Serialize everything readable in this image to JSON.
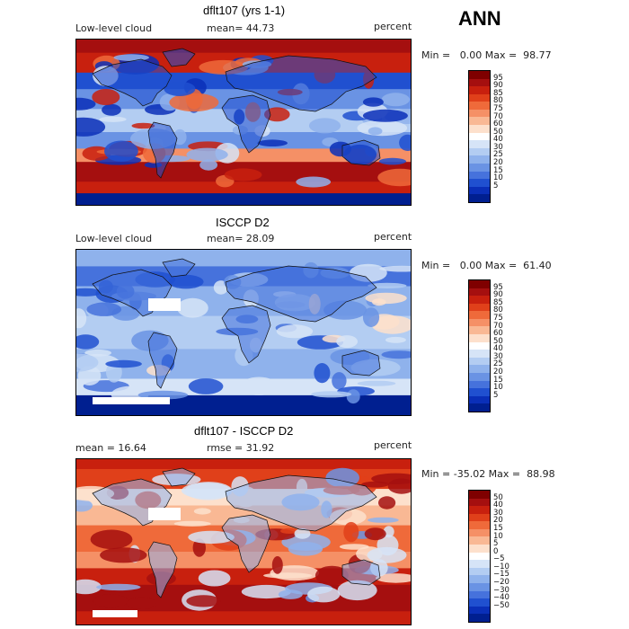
{
  "season": "ANN",
  "panels": [
    {
      "title": "dflt107 (yrs 1-1)",
      "left_label": "Low-level cloud",
      "mid_label": "mean=  44.73",
      "right_label": "percent",
      "minmax": "Min =   0.00 Max =  98.77",
      "map_style": "model"
    },
    {
      "title": "ISCCP D2",
      "left_label": "Low-level cloud",
      "mid_label": "mean=  28.09",
      "right_label": "percent",
      "minmax": "Min =   0.00 Max =  61.40",
      "map_style": "obs"
    },
    {
      "title": "dflt107 - ISCCP D2",
      "left_label": "mean =  16.64",
      "mid_label": "rmse =  31.92",
      "right_label": "percent",
      "minmax": "Min = -35.02 Max =  88.98",
      "map_style": "diff"
    }
  ],
  "colorbars": [
    {
      "labels": [
        "95",
        "90",
        "85",
        "80",
        "75",
        "70",
        "60",
        "50",
        "40",
        "30",
        "25",
        "20",
        "15",
        "10",
        "5"
      ],
      "colors": [
        "#7f0000",
        "#a50f0f",
        "#c8200e",
        "#e0401a",
        "#ef6a3a",
        "#f59066",
        "#f9b894",
        "#fde0cc",
        "#ffffff",
        "#d6e4f7",
        "#b3cdf2",
        "#8fb2ec",
        "#6a93e4",
        "#4672dc",
        "#2050d0",
        "#0a2fb8",
        "#001f90"
      ]
    },
    {
      "labels": [
        "95",
        "90",
        "85",
        "80",
        "75",
        "70",
        "60",
        "50",
        "40",
        "30",
        "25",
        "20",
        "15",
        "10",
        "5"
      ],
      "colors": [
        "#7f0000",
        "#a50f0f",
        "#c8200e",
        "#e0401a",
        "#ef6a3a",
        "#f59066",
        "#f9b894",
        "#fde0cc",
        "#ffffff",
        "#d6e4f7",
        "#b3cdf2",
        "#8fb2ec",
        "#6a93e4",
        "#4672dc",
        "#2050d0",
        "#0a2fb8",
        "#001f90"
      ]
    },
    {
      "labels": [
        "50",
        "40",
        "30",
        "20",
        "15",
        "10",
        "5",
        "0",
        "−5",
        "−10",
        "−15",
        "−20",
        "−30",
        "−40",
        "−50"
      ],
      "colors": [
        "#7f0000",
        "#a50f0f",
        "#c8200e",
        "#e0401a",
        "#ef6a3a",
        "#f59066",
        "#f9b894",
        "#fde0cc",
        "#ffffff",
        "#d6e4f7",
        "#b3cdf2",
        "#8fb2ec",
        "#6a93e4",
        "#4672dc",
        "#2050d0",
        "#0a2fb8",
        "#001f90"
      ]
    }
  ]
}
